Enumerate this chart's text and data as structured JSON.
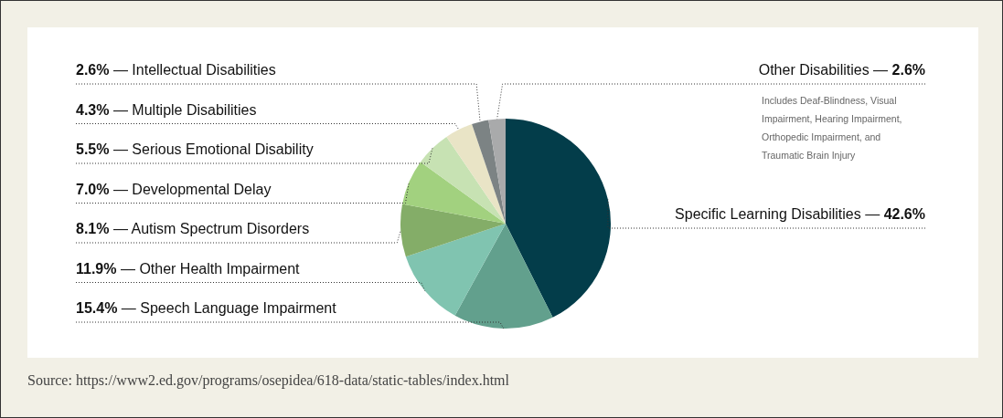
{
  "chart_data": {
    "type": "pie",
    "categories": [
      "Specific Learning Disabilities —",
      "— Speech Language Impairment",
      "— Other Health Impairment",
      "— Autism Spectrum Disorders",
      "— Developmental Delay",
      "— Serious Emotional Disability",
      "— Multiple Disabilities",
      "— Intellectual Disabilities",
      "Other Disabilities —"
    ],
    "values": [
      42.6,
      15.4,
      11.9,
      8.1,
      7.0,
      5.5,
      4.3,
      2.6,
      2.6
    ],
    "value_labels": [
      "42.6%",
      "15.4%",
      "11.9%",
      "8.1%",
      "7.0%",
      "5.5%",
      "4.3%",
      "2.6%",
      "2.6%"
    ],
    "colors": [
      "#033d4a",
      "#62a08d",
      "#80c4b0",
      "#84ad68",
      "#a2d17f",
      "#c7e2b3",
      "#e9e4c6",
      "#7c8384",
      "#a9aaab"
    ],
    "annotations": [
      "Includes Deaf-Blindness, Visual Impairment, Hearing Impairment, Orthopedic Impairment, and Traumatic Brain Injury",
      "Source: https://www2.ed.gov/programs/osepidea/618-data/static-tables/index.html"
    ],
    "legend": false
  }
}
